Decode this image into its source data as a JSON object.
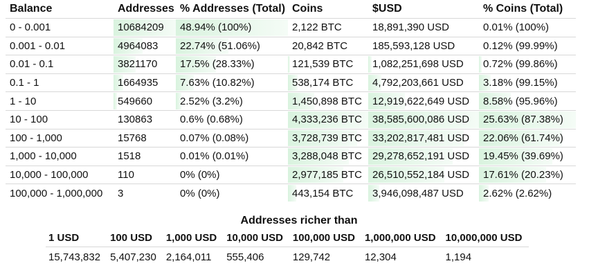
{
  "distribution": {
    "headers": [
      "Balance",
      "Addresses",
      "% Addresses (Total)",
      "Coins",
      "$USD",
      "% Coins (Total)"
    ],
    "rows": [
      {
        "balance": "0 - 0.001",
        "addresses": "10684209",
        "pct_addresses": "48.94% (100%)",
        "coins": "2,122 BTC",
        "usd": "18,891,390 USD",
        "pct_coins": "0.01% (100%)",
        "addr_share": 1.0,
        "coin_share": 0.0
      },
      {
        "balance": "0.001 - 0.01",
        "addresses": "4964083",
        "pct_addresses": "22.74% (51.06%)",
        "coins": "20,842 BTC",
        "usd": "185,593,128 USD",
        "pct_coins": "0.12% (99.99%)",
        "addr_share": 0.47,
        "coin_share": 0.0
      },
      {
        "balance": "0.01 - 0.1",
        "addresses": "3821170",
        "pct_addresses": "17.5% (28.33%)",
        "coins": "121,539 BTC",
        "usd": "1,082,251,698 USD",
        "pct_coins": "0.72% (99.86%)",
        "addr_share": 0.36,
        "coin_share": 0.03
      },
      {
        "balance": "0.1 - 1",
        "addresses": "1664935",
        "pct_addresses": "7.63% (10.82%)",
        "coins": "538,174 BTC",
        "usd": "4,792,203,661 USD",
        "pct_coins": "3.18% (99.15%)",
        "addr_share": 0.16,
        "coin_share": 0.12
      },
      {
        "balance": "1 - 10",
        "addresses": "549660",
        "pct_addresses": "2.52% (3.2%)",
        "coins": "1,450,898 BTC",
        "usd": "12,919,622,649 USD",
        "pct_coins": "8.58% (95.96%)",
        "addr_share": 0.05,
        "coin_share": 0.33
      },
      {
        "balance": "10 - 100",
        "addresses": "130863",
        "pct_addresses": "0.6% (0.68%)",
        "coins": "4,333,236 BTC",
        "usd": "38,585,600,086 USD",
        "pct_coins": "25.63% (87.38%)",
        "addr_share": 0.0,
        "coin_share": 1.0
      },
      {
        "balance": "100 - 1,000",
        "addresses": "15768",
        "pct_addresses": "0.07% (0.08%)",
        "coins": "3,728,739 BTC",
        "usd": "33,202,817,481 USD",
        "pct_coins": "22.06% (61.74%)",
        "addr_share": 0.0,
        "coin_share": 0.86
      },
      {
        "balance": "1,000 - 10,000",
        "addresses": "1518",
        "pct_addresses": "0.01% (0.01%)",
        "coins": "3,288,048 BTC",
        "usd": "29,278,652,191 USD",
        "pct_coins": "19.45% (39.69%)",
        "addr_share": 0.0,
        "coin_share": 0.76
      },
      {
        "balance": "10,000 - 100,000",
        "addresses": "110",
        "pct_addresses": "0% (0%)",
        "coins": "2,977,185 BTC",
        "usd": "26,510,552,184 USD",
        "pct_coins": "17.61% (20.23%)",
        "addr_share": 0.0,
        "coin_share": 0.69
      },
      {
        "balance": "100,000 - 1,000,000",
        "addresses": "3",
        "pct_addresses": "0% (0%)",
        "coins": "443,154 BTC",
        "usd": "3,946,098,487 USD",
        "pct_coins": "2.62% (2.62%)",
        "addr_share": 0.0,
        "coin_share": 0.1
      }
    ]
  },
  "richer_than": {
    "title": "Addresses richer than",
    "headers": [
      "1 USD",
      "100 USD",
      "1,000 USD",
      "10,000 USD",
      "100,000 USD",
      "1,000,000 USD",
      "10,000,000 USD"
    ],
    "values": [
      "15,743,832",
      "5,407,230",
      "2,164,011",
      "555,406",
      "129,742",
      "12,304",
      "1,194"
    ]
  },
  "colors": {
    "tint": "#bae9c4",
    "row_border": "#d8d8d8"
  }
}
